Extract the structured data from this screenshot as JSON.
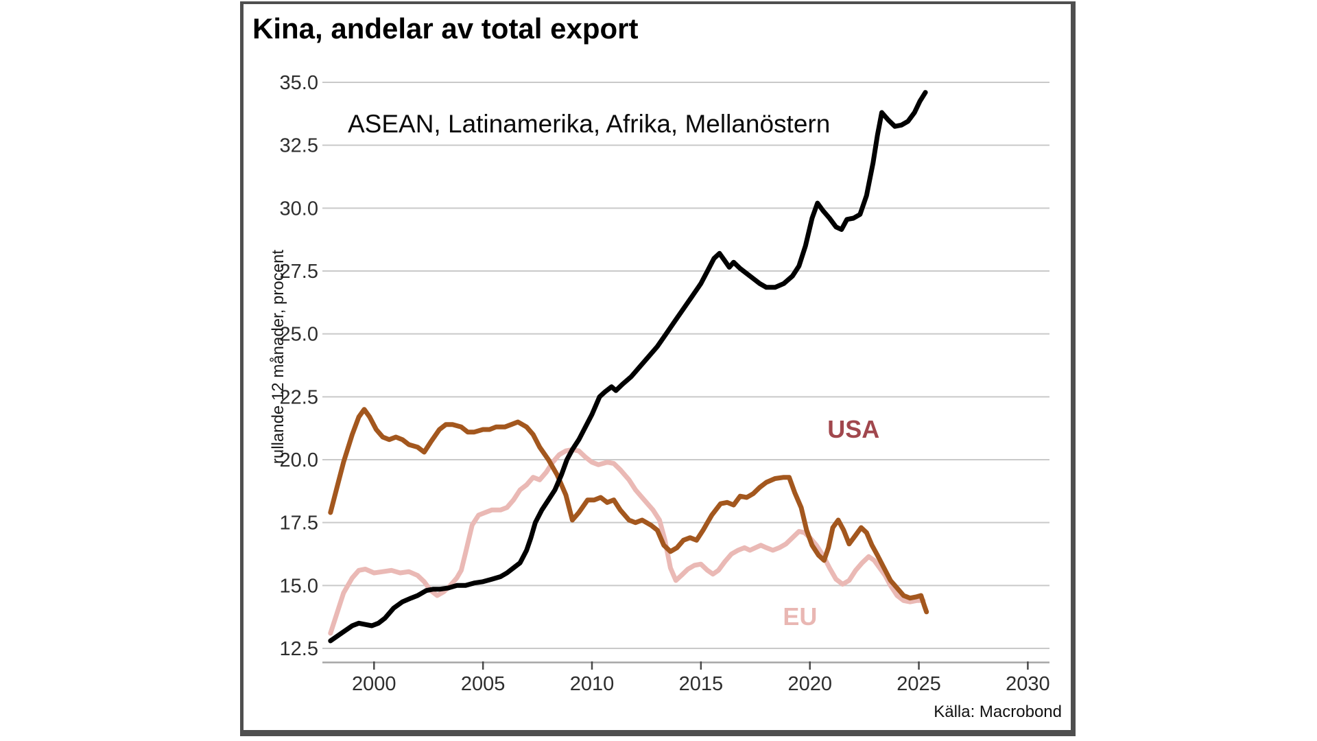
{
  "panel": {
    "background": "#ffffff",
    "border_color": "#4f4f4f"
  },
  "chart_data": {
    "type": "line",
    "title": "Kina, andelar av total export",
    "annotation": "ASEAN, Latinamerika, Afrika, Mellanöstern",
    "ylabel": "rullande 12 månader, procent",
    "source": "Källa: Macrobond",
    "xlim": [
      1997.6,
      2031.2
    ],
    "ylim": [
      11.9,
      35.6
    ],
    "grid": "horizontal",
    "legend_position": "inline-labels",
    "style": {
      "grid_color": "#c9c9c9",
      "axis_color": "#a5a5a5",
      "tick_color": "#4a4a4a",
      "tick_text_color": "#2d2d2d"
    },
    "y_ticks": [
      {
        "value": 35.0,
        "label": "35.0"
      },
      {
        "value": 32.5,
        "label": "32.5"
      },
      {
        "value": 30.0,
        "label": "30.0"
      },
      {
        "value": 27.5,
        "label": "27.5"
      },
      {
        "value": 25.0,
        "label": "25.0"
      },
      {
        "value": 22.5,
        "label": "22.5"
      },
      {
        "value": 20.0,
        "label": "20.0"
      },
      {
        "value": 17.5,
        "label": "17.5"
      },
      {
        "value": 15.0,
        "label": "15.0"
      },
      {
        "value": 12.5,
        "label": "12.5"
      }
    ],
    "x_ticks": [
      {
        "value": 2000,
        "label": "2000"
      },
      {
        "value": 2005,
        "label": "2005"
      },
      {
        "value": 2010,
        "label": "2010"
      },
      {
        "value": 2015,
        "label": "2015"
      },
      {
        "value": 2020,
        "label": "2020"
      },
      {
        "value": 2025,
        "label": "2025"
      },
      {
        "value": 2030,
        "label": "2030"
      }
    ],
    "series": [
      {
        "name": "ASEAN, Latinamerika, Afrika, Mellanöstern",
        "id": "asean-latam-afrika-mellanostern",
        "color": "#000000",
        "line_width": 7,
        "x": [
          1998.0,
          1998.25,
          1998.5,
          1998.75,
          1999.0,
          1999.3,
          1999.6,
          1999.9,
          2000.2,
          2000.5,
          2000.9,
          2001.3,
          2001.7,
          2002.0,
          2002.4,
          2002.7,
          2003.0,
          2003.4,
          2003.8,
          2004.2,
          2004.6,
          2005.0,
          2005.4,
          2005.8,
          2006.1,
          2006.4,
          2006.7,
          2007.0,
          2007.2,
          2007.4,
          2007.7,
          2008.0,
          2008.3,
          2008.6,
          2008.85,
          2009.1,
          2009.4,
          2009.7,
          2010.0,
          2010.35,
          2010.6,
          2010.9,
          2011.1,
          2011.4,
          2011.8,
          2012.2,
          2012.6,
          2013.0,
          2013.4,
          2013.8,
          2014.2,
          2014.6,
          2015.0,
          2015.3,
          2015.6,
          2015.85,
          2016.1,
          2016.3,
          2016.5,
          2016.8,
          2017.1,
          2017.4,
          2017.7,
          2018.0,
          2018.4,
          2018.8,
          2019.2,
          2019.5,
          2019.8,
          2020.1,
          2020.35,
          2020.6,
          2020.9,
          2021.2,
          2021.45,
          2021.7,
          2022.0,
          2022.3,
          2022.6,
          2022.9,
          2023.1,
          2023.3,
          2023.6,
          2023.9,
          2024.2,
          2024.5,
          2024.8,
          2025.05,
          2025.3
        ],
        "values": [
          12.8,
          12.95,
          13.1,
          13.25,
          13.4,
          13.5,
          13.45,
          13.4,
          13.5,
          13.7,
          14.1,
          14.35,
          14.5,
          14.6,
          14.8,
          14.85,
          14.85,
          14.9,
          15.0,
          15.0,
          15.1,
          15.15,
          15.25,
          15.35,
          15.5,
          15.7,
          15.9,
          16.4,
          16.9,
          17.5,
          18.0,
          18.4,
          18.8,
          19.4,
          20.0,
          20.4,
          20.8,
          21.3,
          21.8,
          22.5,
          22.7,
          22.9,
          22.75,
          23.0,
          23.3,
          23.7,
          24.1,
          24.5,
          25.0,
          25.5,
          26.0,
          26.5,
          27.0,
          27.5,
          28.0,
          28.2,
          27.9,
          27.65,
          27.85,
          27.6,
          27.4,
          27.2,
          27.0,
          26.85,
          26.85,
          27.0,
          27.3,
          27.7,
          28.5,
          29.6,
          30.2,
          29.9,
          29.6,
          29.25,
          29.15,
          29.55,
          29.6,
          29.75,
          30.5,
          31.8,
          32.9,
          33.8,
          33.5,
          33.25,
          33.3,
          33.45,
          33.8,
          34.25,
          34.6
        ]
      },
      {
        "name": "USA",
        "id": "usa",
        "color": "#a3571e",
        "line_width": 7,
        "label": {
          "id": "usa",
          "text": "USA",
          "color": "#a1474d",
          "x": 2022.0,
          "y": 21.2,
          "anchor": "middle"
        },
        "x": [
          1998.0,
          1998.3,
          1998.6,
          1999.0,
          1999.3,
          1999.55,
          1999.8,
          2000.1,
          2000.4,
          2000.7,
          2001.0,
          2001.3,
          2001.6,
          2002.0,
          2002.3,
          2002.6,
          2003.0,
          2003.3,
          2003.6,
          2004.0,
          2004.3,
          2004.6,
          2005.0,
          2005.3,
          2005.6,
          2006.0,
          2006.3,
          2006.6,
          2007.0,
          2007.3,
          2007.6,
          2008.0,
          2008.4,
          2008.8,
          2009.1,
          2009.4,
          2009.8,
          2010.1,
          2010.4,
          2010.7,
          2011.0,
          2011.3,
          2011.7,
          2012.0,
          2012.3,
          2012.7,
          2013.0,
          2013.3,
          2013.6,
          2013.9,
          2014.2,
          2014.5,
          2014.8,
          2015.1,
          2015.5,
          2015.9,
          2016.2,
          2016.5,
          2016.8,
          2017.1,
          2017.4,
          2017.7,
          2018.0,
          2018.4,
          2018.8,
          2019.05,
          2019.3,
          2019.6,
          2019.85,
          2020.1,
          2020.4,
          2020.65,
          2020.85,
          2021.05,
          2021.3,
          2021.55,
          2021.8,
          2022.1,
          2022.35,
          2022.6,
          2022.85,
          2023.1,
          2023.4,
          2023.7,
          2024.0,
          2024.3,
          2024.6,
          2024.9,
          2025.1,
          2025.25,
          2025.35
        ],
        "values": [
          17.9,
          18.9,
          19.9,
          21.0,
          21.7,
          22.0,
          21.7,
          21.2,
          20.9,
          20.8,
          20.9,
          20.8,
          20.6,
          20.5,
          20.3,
          20.7,
          21.2,
          21.4,
          21.4,
          21.3,
          21.1,
          21.1,
          21.2,
          21.2,
          21.3,
          21.3,
          21.4,
          21.5,
          21.3,
          21.0,
          20.5,
          20.0,
          19.4,
          18.6,
          17.6,
          17.9,
          18.4,
          18.4,
          18.5,
          18.3,
          18.4,
          18.0,
          17.6,
          17.5,
          17.6,
          17.4,
          17.2,
          16.6,
          16.35,
          16.5,
          16.8,
          16.9,
          16.8,
          17.2,
          17.8,
          18.25,
          18.3,
          18.2,
          18.55,
          18.5,
          18.65,
          18.9,
          19.1,
          19.25,
          19.3,
          19.3,
          18.7,
          18.1,
          17.2,
          16.6,
          16.2,
          16.0,
          16.5,
          17.3,
          17.6,
          17.2,
          16.65,
          17.0,
          17.3,
          17.1,
          16.6,
          16.2,
          15.7,
          15.2,
          14.9,
          14.6,
          14.5,
          14.55,
          14.6,
          14.2,
          13.95
        ]
      },
      {
        "name": "EU",
        "id": "eu",
        "color": "#eab9b5",
        "line_width": 7,
        "label": {
          "id": "eu",
          "text": "EU",
          "color": "#e9b7b3",
          "x": 2019.55,
          "y": 13.75,
          "anchor": "middle"
        },
        "x": [
          1998.0,
          1998.3,
          1998.6,
          1999.0,
          1999.3,
          1999.6,
          2000.0,
          2000.4,
          2000.8,
          2001.2,
          2001.6,
          2002.0,
          2002.3,
          2002.6,
          2002.9,
          2003.2,
          2003.5,
          2003.8,
          2004.0,
          2004.2,
          2004.5,
          2004.8,
          2005.1,
          2005.4,
          2005.8,
          2006.1,
          2006.4,
          2006.7,
          2007.0,
          2007.3,
          2007.6,
          2007.9,
          2008.2,
          2008.5,
          2008.8,
          2009.1,
          2009.4,
          2009.7,
          2010.0,
          2010.3,
          2010.7,
          2011.0,
          2011.3,
          2011.7,
          2012.0,
          2012.4,
          2012.8,
          2013.1,
          2013.35,
          2013.6,
          2013.85,
          2014.1,
          2014.4,
          2014.7,
          2015.0,
          2015.3,
          2015.55,
          2015.8,
          2016.1,
          2016.4,
          2016.7,
          2017.0,
          2017.25,
          2017.5,
          2017.75,
          2018.0,
          2018.3,
          2018.6,
          2018.9,
          2019.2,
          2019.5,
          2019.75,
          2020.0,
          2020.3,
          2020.6,
          2020.9,
          2021.2,
          2021.5,
          2021.8,
          2022.1,
          2022.4,
          2022.7,
          2022.95,
          2023.2,
          2023.45,
          2023.7,
          2024.0,
          2024.3,
          2024.6,
          2024.9,
          2025.2
        ],
        "values": [
          13.1,
          13.9,
          14.7,
          15.3,
          15.6,
          15.65,
          15.5,
          15.55,
          15.6,
          15.5,
          15.55,
          15.4,
          15.15,
          14.8,
          14.6,
          14.75,
          15.0,
          15.3,
          15.6,
          16.3,
          17.4,
          17.8,
          17.9,
          18.0,
          18.0,
          18.1,
          18.4,
          18.8,
          19.0,
          19.3,
          19.2,
          19.5,
          19.9,
          20.2,
          20.35,
          20.4,
          20.35,
          20.1,
          19.9,
          19.8,
          19.9,
          19.85,
          19.6,
          19.2,
          18.8,
          18.4,
          18.0,
          17.6,
          16.8,
          15.7,
          15.2,
          15.4,
          15.65,
          15.8,
          15.85,
          15.6,
          15.45,
          15.6,
          15.95,
          16.25,
          16.4,
          16.5,
          16.4,
          16.5,
          16.6,
          16.5,
          16.4,
          16.5,
          16.65,
          16.9,
          17.15,
          17.1,
          16.9,
          16.6,
          16.2,
          15.7,
          15.25,
          15.05,
          15.2,
          15.6,
          15.9,
          16.15,
          16.0,
          15.7,
          15.4,
          15.0,
          14.6,
          14.4,
          14.35,
          14.4,
          14.4
        ]
      }
    ]
  }
}
